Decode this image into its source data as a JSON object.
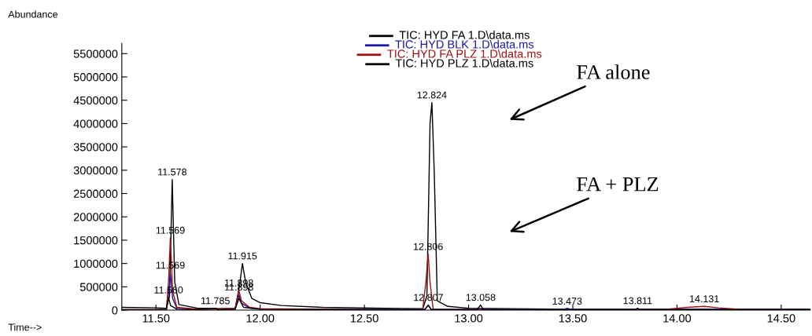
{
  "chart_data": {
    "type": "line",
    "ylabel": "Abundance",
    "xlabel": "Time-->",
    "xlim": [
      11.336,
      14.64
    ],
    "ylim": [
      0,
      5720000
    ],
    "xticks": [
      {
        "value": 11.5,
        "label": "11.50"
      },
      {
        "value": 12.0,
        "label": "12.00"
      },
      {
        "value": 12.5,
        "label": "12.50"
      },
      {
        "value": 13.0,
        "label": "13.00"
      },
      {
        "value": 13.5,
        "label": "13.50"
      },
      {
        "value": 14.0,
        "label": "14.00"
      },
      {
        "value": 14.5,
        "label": "14.50"
      }
    ],
    "yticks": [
      0,
      500000,
      1000000,
      1500000,
      2000000,
      2500000,
      3000000,
      3500000,
      4000000,
      4500000,
      5000000,
      5500000
    ],
    "grid": false,
    "legend": "top",
    "marker": "none",
    "line_style": "solid",
    "series": [
      {
        "name": "TIC: HYD FA 1.D\\data.ms",
        "color": "#000000",
        "x": [
          11.336,
          11.5,
          11.55,
          11.565,
          11.578,
          11.59,
          11.61,
          11.7,
          11.8,
          11.88,
          11.9,
          11.915,
          11.93,
          11.96,
          12.0,
          12.1,
          12.3,
          12.6,
          12.78,
          12.8,
          12.815,
          12.824,
          12.835,
          12.85,
          12.9,
          13.0,
          13.5,
          14.0,
          14.64
        ],
        "values": [
          60000,
          50000,
          40000,
          300000,
          2800000,
          600000,
          120000,
          40000,
          30000,
          40000,
          500000,
          1000000,
          600000,
          250000,
          160000,
          100000,
          60000,
          40000,
          30000,
          300000,
          4000000,
          4450000,
          3000000,
          200000,
          80000,
          40000,
          20000,
          20000,
          20000
        ]
      },
      {
        "name": "TIC: HYD BLK 1.D\\data.ms",
        "color": "#1a1aa6",
        "x": [
          11.55,
          11.56,
          11.569,
          11.58,
          11.6,
          11.7,
          11.88,
          11.898,
          11.91,
          11.95,
          12.0,
          12.5,
          12.79,
          12.807,
          12.82,
          13.0,
          13.46,
          13.473,
          13.49,
          14.0,
          14.64
        ],
        "values": [
          20000,
          300000,
          800000,
          250000,
          40000,
          20000,
          20000,
          330000,
          150000,
          40000,
          20000,
          20000,
          20000,
          100000,
          20000,
          20000,
          20000,
          40000,
          20000,
          20000,
          20000
        ]
      },
      {
        "name": "TIC: HYD FA PLZ 1.D\\data.ms",
        "color": "#a01010",
        "x": [
          11.336,
          11.5,
          11.55,
          11.56,
          11.569,
          11.58,
          11.6,
          11.7,
          11.88,
          11.898,
          11.91,
          11.95,
          12.0,
          12.5,
          12.78,
          12.795,
          12.806,
          12.815,
          12.83,
          13.0,
          13.8,
          13.95,
          14.05,
          14.131,
          14.2,
          14.3,
          14.64
        ],
        "values": [
          10000,
          10000,
          20000,
          600000,
          1550000,
          400000,
          60000,
          20000,
          30000,
          420000,
          200000,
          60000,
          30000,
          10000,
          10000,
          600000,
          1200000,
          600000,
          20000,
          10000,
          10000,
          20000,
          60000,
          80000,
          50000,
          20000,
          10000
        ]
      },
      {
        "name": "TIC: HYD PLZ 1.D\\data.ms",
        "color": "#000000",
        "x": [
          11.336,
          11.5,
          11.55,
          11.56,
          11.57,
          11.6,
          11.7,
          11.785,
          11.8,
          11.88,
          11.898,
          11.92,
          12.0,
          12.5,
          12.79,
          12.807,
          12.82,
          13.04,
          13.058,
          13.07,
          13.8,
          13.811,
          13.82,
          14.64
        ],
        "values": [
          10000,
          10000,
          20000,
          270000,
          100000,
          20000,
          10000,
          40000,
          10000,
          20000,
          250000,
          60000,
          20000,
          10000,
          10000,
          110000,
          10000,
          10000,
          110000,
          10000,
          10000,
          40000,
          10000,
          10000
        ]
      }
    ],
    "annotations": [
      {
        "text": "11.578",
        "x": 11.578,
        "y": 2800000
      },
      {
        "text": "11.569",
        "x": 11.569,
        "y": 1550000
      },
      {
        "text": "11.569",
        "x": 11.569,
        "y": 800000
      },
      {
        "text": "11.560",
        "x": 11.56,
        "y": 270000
      },
      {
        "text": "11.785",
        "x": 11.785,
        "y": 40000
      },
      {
        "text": "11.915",
        "x": 11.915,
        "y": 1000000
      },
      {
        "text": "11.898",
        "x": 11.898,
        "y": 420000
      },
      {
        "text": "11.898",
        "x": 11.898,
        "y": 330000
      },
      {
        "text": "12.824",
        "x": 12.824,
        "y": 4450000
      },
      {
        "text": "12.806",
        "x": 12.806,
        "y": 1200000
      },
      {
        "text": "12.807",
        "x": 12.807,
        "y": 110000
      },
      {
        "text": "13.058",
        "x": 13.058,
        "y": 110000
      },
      {
        "text": "13.473",
        "x": 13.473,
        "y": 30000
      },
      {
        "text": "13.811",
        "x": 13.811,
        "y": 40000
      },
      {
        "text": "14.131",
        "x": 14.131,
        "y": 80000
      },
      "FA alone",
      "FA + PLZ"
    ]
  }
}
